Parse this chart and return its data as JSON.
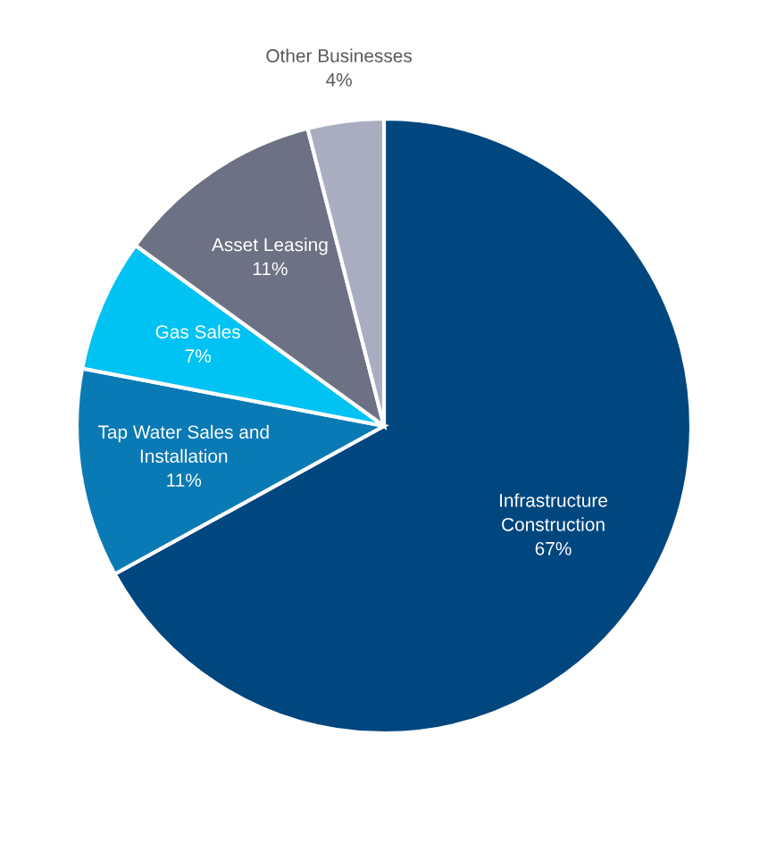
{
  "chart_data": {
    "type": "pie",
    "categories": [
      "Infrastructure\nConstruction",
      "Tap Water Sales and\nInstallation",
      "Gas Sales",
      "Asset Leasing",
      "Other Businesses"
    ],
    "values": [
      67,
      11,
      7,
      11,
      4
    ],
    "value_labels": [
      "67%",
      "11%",
      "7%",
      "11%",
      "4%"
    ],
    "colors": [
      "#00467f",
      "#0a7ab5",
      "#00c2f3",
      "#6d7184",
      "#a8adbf"
    ],
    "legend": false
  }
}
